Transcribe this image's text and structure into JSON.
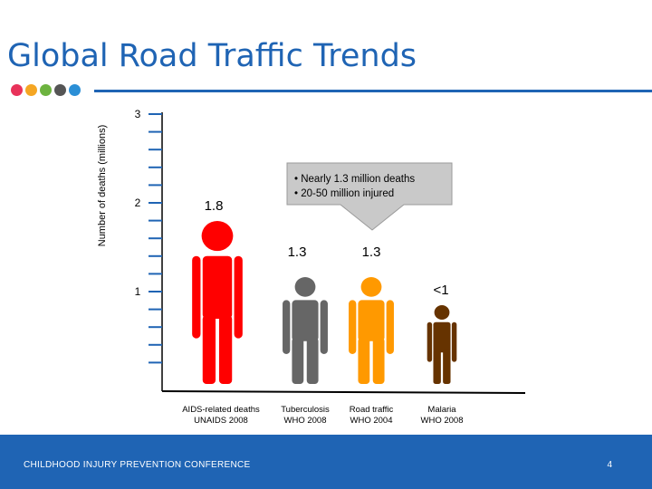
{
  "slide": {
    "title": "Global Road Traffic Trends",
    "page_number": "4",
    "footer_text": "CHILDHOOD INJURY PREVENTION CONFERENCE",
    "accent_color": "#1f64b4",
    "dot_colors": [
      "#e8325a",
      "#f5a623",
      "#6db33f",
      "#555555",
      "#2b8fd6"
    ]
  },
  "chart_data": {
    "type": "pictograph",
    "title": "Global Road Traffic Trends",
    "ylabel": "Number of deaths (millions)",
    "ylim": [
      0,
      3
    ],
    "yticks": [
      "1",
      "2",
      "3"
    ],
    "categories": [
      {
        "label_line1": "AIDS-related deaths",
        "label_line2": "UNAIDS 2008",
        "value": 1.8,
        "value_label": "1.8",
        "color": "#ff0000"
      },
      {
        "label_line1": "Tuberculosis",
        "label_line2": "WHO 2008",
        "value": 1.3,
        "value_label": "1.3",
        "color": "#666666"
      },
      {
        "label_line1": "Road traffic",
        "label_line2": "WHO 2004",
        "value": 1.3,
        "value_label": "1.3",
        "color": "#ff9900"
      },
      {
        "label_line1": "Malaria",
        "label_line2": "WHO 2008",
        "value": 0.9,
        "value_label": "<1",
        "color": "#663300"
      }
    ],
    "callout": {
      "bullets": [
        "Nearly 1.3 million deaths",
        "20-50 million injured"
      ],
      "fill": "#c9c9c9"
    }
  }
}
